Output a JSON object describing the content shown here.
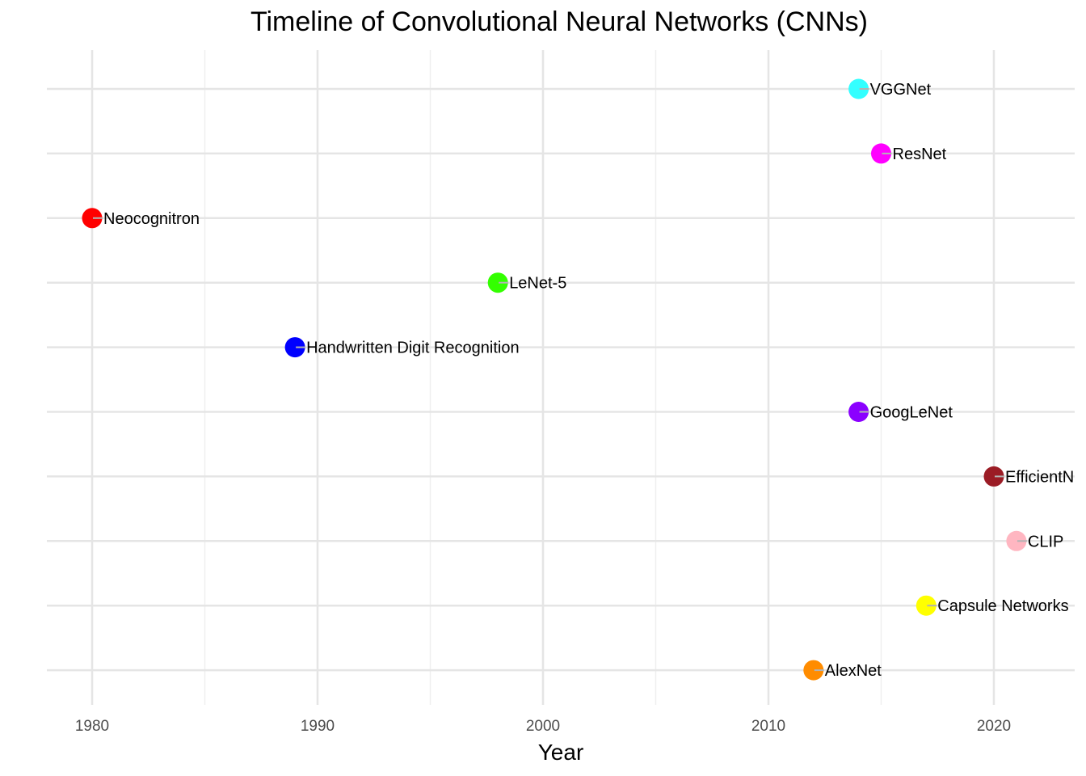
{
  "chart_data": {
    "type": "scatter",
    "title": "Timeline of Convolutional Neural Networks (CNNs)",
    "xlabel": "Year",
    "ylabel": "",
    "xlim": [
      1978,
      2023.7
    ],
    "x_ticks": [
      1980,
      1990,
      2000,
      2010,
      2020
    ],
    "x_minor_ticks": [
      1985,
      1995,
      2005,
      2015
    ],
    "grid": true,
    "legend": "none",
    "points": [
      {
        "year": 2014,
        "label": "VGGNet",
        "color": "#33FFFF"
      },
      {
        "year": 2015,
        "label": "ResNet",
        "color": "#FF00FF"
      },
      {
        "year": 1980,
        "label": "Neocognitron",
        "color": "#FF0000"
      },
      {
        "year": 1998,
        "label": "LeNet-5",
        "color": "#33FF00"
      },
      {
        "year": 1989,
        "label": "Handwritten Digit Recognition",
        "color": "#0000FF"
      },
      {
        "year": 2014,
        "label": "GoogLeNet",
        "color": "#8B00FF"
      },
      {
        "year": 2020,
        "label": "EfficientNet",
        "color": "#9B1C25"
      },
      {
        "year": 2021,
        "label": "CLIP",
        "color": "#FFB6C1"
      },
      {
        "year": 2017,
        "label": "Capsule Networks",
        "color": "#FFFF00"
      },
      {
        "year": 2012,
        "label": "AlexNet",
        "color": "#FF8C00"
      }
    ]
  },
  "colors": {
    "grid_major": "#e5e5e5",
    "grid_minor": "#efefef",
    "connector": "#b3b3b3"
  }
}
